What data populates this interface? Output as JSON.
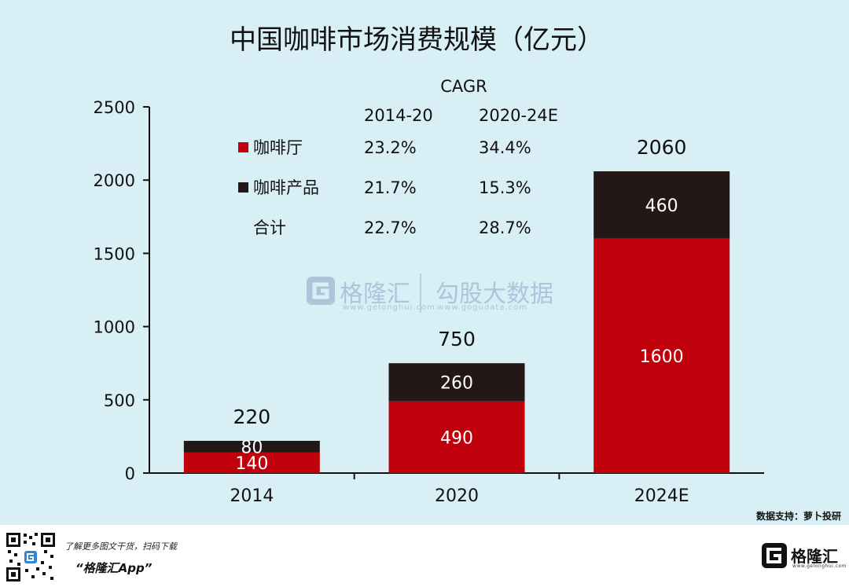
{
  "chart_data": {
    "type": "bar",
    "stacked": true,
    "title": "中国咖啡市场消费规模（亿元）",
    "categories": [
      "2014",
      "2020",
      "2024E"
    ],
    "series": [
      {
        "name": "咖啡厅",
        "values": [
          140,
          490,
          1600
        ],
        "color": "#c0000b"
      },
      {
        "name": "咖啡产品",
        "values": [
          80,
          260,
          460
        ],
        "color": "#231816"
      }
    ],
    "totals": [
      220,
      750,
      2060
    ],
    "ylim": [
      0,
      2500
    ],
    "yticks": [
      0,
      500,
      1000,
      1500,
      2000,
      2500
    ],
    "grid": false,
    "legend_position": "top-left",
    "cagr_table": {
      "title": "CAGR",
      "headers": [
        "2014-20",
        "2020-24E"
      ],
      "rows": [
        {
          "label": "咖啡厅",
          "values": [
            "23.2%",
            "34.4%"
          ],
          "color": "#c0000b"
        },
        {
          "label": "咖啡产品",
          "values": [
            "21.7%",
            "15.3%"
          ],
          "color": "#231816"
        },
        {
          "label": "合计",
          "values": [
            "22.7%",
            "28.7%"
          ]
        }
      ]
    },
    "source": "数据支持：萝卜投研"
  },
  "watermark": {
    "left_cn": "格隆汇",
    "left_en": "www.gelonghui.com",
    "right_cn": "勾股大数据",
    "right_en": "www.gogudata.com"
  },
  "footer": {
    "tip": "了解更多图文干货，扫码下载",
    "app": "“格隆汇App”",
    "logo_text": "格隆汇",
    "logo_sub": "www.gelonghui.com"
  },
  "colors": {
    "background": "#d9eff6",
    "cafe": "#c0000b",
    "product": "#231816",
    "watermark": "#aac6d8"
  },
  "icons": [
    "qr-code-icon",
    "gelonghui-logo-icon"
  ]
}
